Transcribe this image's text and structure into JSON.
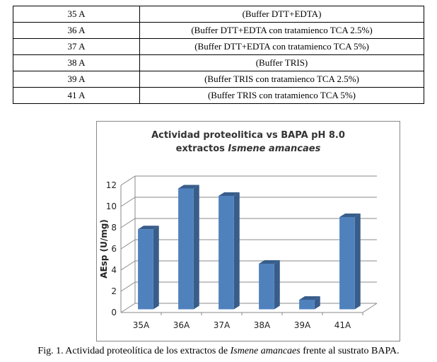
{
  "table": {
    "rows": [
      {
        "code": "35 A",
        "desc": "(Buffer DTT+EDTA)"
      },
      {
        "code": "36 A",
        "desc": "(Buffer DTT+EDTA con tratamienco TCA 2.5%)"
      },
      {
        "code": "37 A",
        "desc": "(Buffer DTT+EDTA con tratamienco TCA 5%)"
      },
      {
        "code": "38 A",
        "desc": "(Buffer TRIS)"
      },
      {
        "code": "39 A",
        "desc": "(Buffer TRIS con tratamienco TCA 2.5%)"
      },
      {
        "code": "41 A",
        "desc": "(Buffer TRIS con tratamienco TCA 5%)"
      }
    ]
  },
  "chart_data": {
    "type": "bar",
    "title_line1": "Actividad proteolitica vs BAPA pH 8.0",
    "title_line2_prefix": "extractos ",
    "title_line2_italic": "Ismene amancaes",
    "ylabel": "AEsp (U/mg)",
    "xlabel": "",
    "categories": [
      "35A",
      "36A",
      "37A",
      "38A",
      "39A",
      "41A"
    ],
    "values": [
      7.55,
      11.4,
      10.7,
      4.3,
      0.9,
      8.7
    ],
    "ylim": [
      0,
      12
    ],
    "yticks": [
      "0",
      "2",
      "4",
      "6",
      "8",
      "10",
      "12"
    ],
    "grid": true,
    "bar_color": "#4f81bd",
    "bar_side_color": "#385d8a"
  },
  "caption": {
    "prefix": "Fig. 1. Actividad proteolítica de los extractos de ",
    "italic": "Ismene amancaes",
    "suffix": " frente al sustrato BAPA."
  }
}
